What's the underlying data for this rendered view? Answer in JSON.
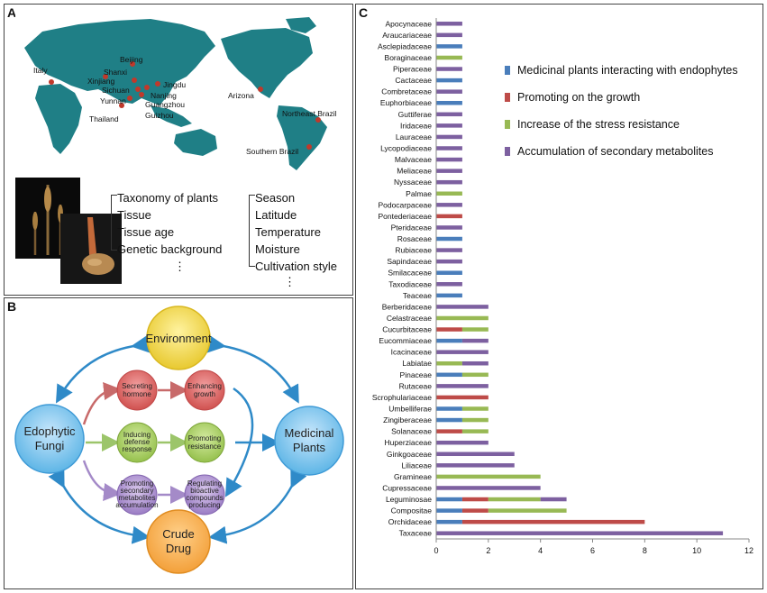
{
  "panels": {
    "a": {
      "label": "A"
    },
    "b": {
      "label": "B"
    },
    "c": {
      "label": "C"
    }
  },
  "map": {
    "locations": [
      "Italy",
      "Xinjiang",
      "Beijing",
      "Shanxi",
      "Sichuan",
      "Yunnan",
      "Thailand",
      "Jingdu",
      "Nanjing",
      "Guangzhou",
      "Guizhou",
      "Arizona",
      "Northeast Brazil",
      "Southern Brazil"
    ],
    "land_color": "#1f7f86",
    "pin_color": "#c0392b"
  },
  "factors": {
    "left": [
      "Taxonomy of plants",
      "Tissue",
      "Tissue age",
      "Genetic background"
    ],
    "right": [
      "Season",
      "Latitude",
      "Temperature",
      "Moisture",
      "Cultivation style"
    ],
    "ellipsis": "⋮"
  },
  "diagram": {
    "environment": "Environment",
    "fungi_line1": "Edophytic",
    "fungi_line2": "Fungi",
    "plants_line1": "Medicinal",
    "plants_line2": "Plants",
    "crude_line1": "Crude",
    "crude_line2": "Drug",
    "secreting_line1": "Secreting",
    "secreting_line2": "hormone",
    "enhancing_line1": "Enhancing",
    "enhancing_line2": "growth",
    "inducing_line1": "Inducing",
    "inducing_line2": "defense",
    "inducing_line3": "response",
    "promoting_res_line1": "Promoting",
    "promoting_res_line2": "resistance",
    "promoting_sec_line1": "Promoting",
    "promoting_sec_line2": "secondary",
    "promoting_sec_line3": "metabolites",
    "promoting_sec_line4": "accumulation",
    "regulating_line1": "Regulating",
    "regulating_line2": "bioactive",
    "regulating_line3": "compounds",
    "regulating_line4": "producing"
  },
  "chart_data": {
    "type": "bar",
    "orientation": "horizontal",
    "stacked": true,
    "categories": [
      "Apocynaceae",
      "Araucariaceae",
      "Asclepiadaceae",
      "Boraginaceae",
      "Piperaceae",
      "Cactaceae",
      "Combretaceae",
      "Euphorbiaceae",
      "Guttiferae",
      "Iridaceae",
      "Lauraceae",
      "Lycopodiaceae",
      "Malvaceae",
      "Meliaceae",
      "Nyssaceae",
      "Palmae",
      "Podocarpaceae",
      "Pontederiaceae",
      "Pteridaceae",
      "Rosaceae",
      "Rubiaceae",
      "Sapindaceae",
      "Smilacaceae",
      "Taxodiaceae",
      "Teaceae",
      "Berberidaceae",
      "Celastraceae",
      "Cucurbitaceae",
      "Eucommiaceae",
      "Icacinaceae",
      "Labiatae",
      "Pinaceae",
      "Rutaceae",
      "Scrophulariaceae",
      "Umbelliferae",
      "Zingiberaceae",
      "Solanaceae",
      "Huperziaceae",
      "Ginkgoaceae",
      "Liliaceae",
      "Gramineae",
      "Cupressaceae",
      "Leguminosae",
      "Compositae",
      "Orchidaceae",
      "Taxaceae"
    ],
    "series": [
      {
        "name": "Medicinal plants interacting with endophytes",
        "color": "#4a7ebb",
        "values": [
          0,
          0,
          1,
          0,
          0,
          1,
          0,
          1,
          0,
          0,
          0,
          0,
          0,
          0,
          0,
          0,
          0,
          0,
          0,
          1,
          0,
          0,
          1,
          0,
          1,
          0,
          0,
          0,
          1,
          0,
          0,
          1,
          0,
          0,
          1,
          1,
          0,
          0,
          0,
          0,
          0,
          0,
          1,
          1,
          1,
          0
        ]
      },
      {
        "name": "Promoting on the growth",
        "color": "#be4b48",
        "values": [
          0,
          0,
          0,
          0,
          0,
          0,
          0,
          0,
          0,
          0,
          0,
          0,
          0,
          0,
          0,
          0,
          0,
          1,
          0,
          0,
          0,
          0,
          0,
          0,
          0,
          0,
          0,
          1,
          0,
          0,
          0,
          0,
          0,
          2,
          0,
          0,
          1,
          0,
          0,
          0,
          0,
          0,
          1,
          1,
          7,
          0
        ]
      },
      {
        "name": "Increase of the stress resistance",
        "color": "#98b954",
        "values": [
          0,
          0,
          0,
          1,
          0,
          0,
          0,
          0,
          0,
          0,
          0,
          0,
          0,
          0,
          0,
          1,
          0,
          0,
          0,
          0,
          0,
          0,
          0,
          0,
          0,
          0,
          2,
          1,
          0,
          0,
          1,
          1,
          0,
          0,
          1,
          1,
          1,
          0,
          0,
          0,
          4,
          0,
          2,
          3,
          0,
          0
        ]
      },
      {
        "name": "Accumulation of secondary metabolites",
        "color": "#7d60a0",
        "values": [
          1,
          1,
          0,
          0,
          1,
          0,
          1,
          0,
          1,
          1,
          1,
          1,
          1,
          1,
          1,
          0,
          1,
          0,
          1,
          0,
          1,
          1,
          0,
          1,
          0,
          2,
          0,
          0,
          1,
          2,
          1,
          0,
          2,
          0,
          0,
          0,
          0,
          2,
          3,
          3,
          0,
          4,
          1,
          0,
          0,
          11
        ]
      }
    ],
    "xlim": [
      0,
      12
    ],
    "xticks": [
      0,
      2,
      4,
      6,
      8,
      10,
      12
    ]
  }
}
